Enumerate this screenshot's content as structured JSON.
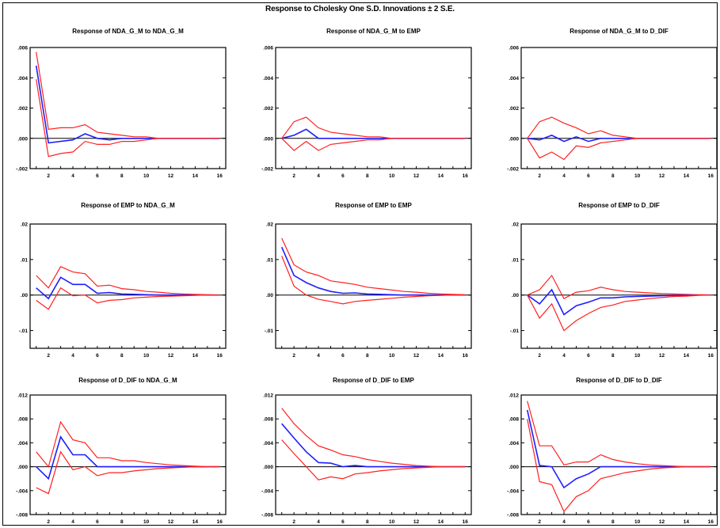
{
  "figure": {
    "title": "Response to Cholesky One S.D. Innovations ± 2 S.E."
  },
  "colors": {
    "response": "#1f1fff",
    "band": "#ff2020",
    "zero": "#000000",
    "axis": "#000000"
  },
  "chart_data": [
    {
      "type": "line",
      "title": "Response of NDA_G_M to NDA_G_M",
      "x": [
        1,
        2,
        3,
        4,
        5,
        6,
        7,
        8,
        9,
        10,
        11,
        12,
        13,
        14,
        15,
        16
      ],
      "xticks": [
        "2",
        "4",
        "6",
        "8",
        "10",
        "12",
        "14",
        "16"
      ],
      "ylim": [
        -0.002,
        0.006
      ],
      "yticks": [
        ".006",
        ".004",
        ".002",
        ".000",
        "-.002"
      ],
      "ytick_values": [
        0.006,
        0.004,
        0.002,
        0.0,
        -0.002
      ],
      "series": [
        {
          "role": "response",
          "values": [
            0.0048,
            -0.0003,
            -0.0002,
            -0.0001,
            0.0003,
            0.0,
            -0.0001,
            0.0,
            0.0,
            0.0,
            0.0,
            0.0,
            0.0,
            0.0,
            0.0,
            0.0
          ]
        },
        {
          "role": "upper",
          "values": [
            0.0057,
            0.0006,
            0.0007,
            0.0007,
            0.0009,
            0.0004,
            0.0003,
            0.0002,
            0.0001,
            0.0001,
            0.0,
            0.0,
            0.0,
            0.0,
            0.0,
            0.0
          ]
        },
        {
          "role": "lower",
          "values": [
            0.0039,
            -0.0012,
            -0.001,
            -0.0009,
            -0.0002,
            -0.0004,
            -0.0004,
            -0.0002,
            -0.0002,
            -0.0001,
            0.0,
            0.0,
            0.0,
            0.0,
            0.0,
            0.0
          ]
        }
      ]
    },
    {
      "type": "line",
      "title": "Response of NDA_G_M to EMP",
      "x": [
        1,
        2,
        3,
        4,
        5,
        6,
        7,
        8,
        9,
        10,
        11,
        12,
        13,
        14,
        15,
        16
      ],
      "xticks": [
        "2",
        "4",
        "6",
        "8",
        "10",
        "12",
        "14",
        "16"
      ],
      "ylim": [
        -0.002,
        0.006
      ],
      "yticks": [
        ".006",
        ".004",
        ".002",
        ".000",
        "-.002"
      ],
      "ytick_values": [
        0.006,
        0.004,
        0.002,
        0.0,
        -0.002
      ],
      "series": [
        {
          "role": "response",
          "values": [
            0.0,
            0.0002,
            0.0006,
            0.0,
            0.0,
            0.0,
            0.0,
            0.0,
            0.0,
            0.0,
            0.0,
            0.0,
            0.0,
            0.0,
            0.0,
            0.0
          ]
        },
        {
          "role": "upper",
          "values": [
            0.0,
            0.0011,
            0.0014,
            0.0007,
            0.0004,
            0.0003,
            0.0002,
            0.0001,
            0.0001,
            0.0,
            0.0,
            0.0,
            0.0,
            0.0,
            0.0,
            0.0
          ]
        },
        {
          "role": "lower",
          "values": [
            0.0,
            -0.0008,
            -0.0002,
            -0.0008,
            -0.0004,
            -0.0003,
            -0.0002,
            -0.0001,
            -0.0001,
            0.0,
            0.0,
            0.0,
            0.0,
            0.0,
            0.0,
            0.0
          ]
        }
      ]
    },
    {
      "type": "line",
      "title": "Response of NDA_G_M to D_DIF",
      "x": [
        1,
        2,
        3,
        4,
        5,
        6,
        7,
        8,
        9,
        10,
        11,
        12,
        13,
        14,
        15,
        16
      ],
      "xticks": [
        "2",
        "4",
        "6",
        "8",
        "10",
        "12",
        "14",
        "16"
      ],
      "ylim": [
        -0.002,
        0.006
      ],
      "yticks": [
        ".006",
        ".004",
        ".002",
        ".000",
        "-.002"
      ],
      "ytick_values": [
        0.006,
        0.004,
        0.002,
        0.0,
        -0.002
      ],
      "series": [
        {
          "role": "response",
          "values": [
            0.0,
            -0.0001,
            0.0002,
            -0.0002,
            0.0001,
            -0.0002,
            0.0,
            0.0,
            0.0,
            0.0,
            0.0,
            0.0,
            0.0,
            0.0,
            0.0,
            0.0
          ]
        },
        {
          "role": "upper",
          "values": [
            0.0,
            0.0011,
            0.0014,
            0.001,
            0.0007,
            0.0003,
            0.0005,
            0.0002,
            0.0001,
            0.0,
            0.0,
            0.0,
            0.0,
            0.0,
            0.0,
            0.0
          ]
        },
        {
          "role": "lower",
          "values": [
            0.0,
            -0.0013,
            -0.0009,
            -0.0014,
            -0.0005,
            -0.0006,
            -0.0003,
            -0.0002,
            -0.0001,
            0.0,
            0.0,
            0.0,
            0.0,
            0.0,
            0.0,
            0.0
          ]
        }
      ]
    },
    {
      "type": "line",
      "title": "Response of EMP to NDA_G_M",
      "x": [
        1,
        2,
        3,
        4,
        5,
        6,
        7,
        8,
        9,
        10,
        11,
        12,
        13,
        14,
        15,
        16
      ],
      "xticks": [
        "2",
        "4",
        "6",
        "8",
        "10",
        "12",
        "14",
        "16"
      ],
      "ylim": [
        -0.015,
        0.02
      ],
      "yticks": [
        ".02",
        ".01",
        ".00",
        "-.01"
      ],
      "ytick_values": [
        0.02,
        0.01,
        0.0,
        -0.01
      ],
      "series": [
        {
          "role": "response",
          "values": [
            0.002,
            -0.001,
            0.005,
            0.003,
            0.003,
            0.0005,
            0.0007,
            0.0003,
            0.0002,
            0.0001,
            0.0,
            0.0,
            0.0,
            0.0,
            0.0,
            0.0
          ]
        },
        {
          "role": "upper",
          "values": [
            0.0055,
            0.002,
            0.008,
            0.0065,
            0.006,
            0.0025,
            0.0028,
            0.0018,
            0.0015,
            0.001,
            0.0008,
            0.0005,
            0.0003,
            0.0002,
            0.0001,
            0.0
          ]
        },
        {
          "role": "lower",
          "values": [
            -0.0015,
            -0.004,
            0.002,
            -0.0002,
            0.0,
            -0.0022,
            -0.0015,
            -0.0013,
            -0.0008,
            -0.0006,
            -0.0004,
            -0.0003,
            -0.0002,
            -0.0001,
            0.0,
            0.0
          ]
        }
      ]
    },
    {
      "type": "line",
      "title": "Response of EMP to EMP",
      "x": [
        1,
        2,
        3,
        4,
        5,
        6,
        7,
        8,
        9,
        10,
        11,
        12,
        13,
        14,
        15,
        16
      ],
      "xticks": [
        "2",
        "4",
        "6",
        "8",
        "10",
        "12",
        "14",
        "16"
      ],
      "ylim": [
        -0.015,
        0.02
      ],
      "yticks": [
        ".02",
        ".01",
        ".00",
        "-.01"
      ],
      "ytick_values": [
        0.02,
        0.01,
        0.0,
        -0.01
      ],
      "series": [
        {
          "role": "response",
          "values": [
            0.0135,
            0.0055,
            0.0035,
            0.002,
            0.001,
            0.0005,
            0.0006,
            0.0003,
            0.0002,
            0.0001,
            0.0,
            0.0,
            0.0,
            0.0,
            0.0,
            0.0
          ]
        },
        {
          "role": "upper",
          "values": [
            0.016,
            0.0085,
            0.0065,
            0.0055,
            0.004,
            0.0035,
            0.003,
            0.0022,
            0.0018,
            0.0014,
            0.001,
            0.0008,
            0.0005,
            0.0003,
            0.0002,
            0.0001
          ]
        },
        {
          "role": "lower",
          "values": [
            0.011,
            0.0025,
            0.0,
            -0.0012,
            -0.0018,
            -0.0025,
            -0.0018,
            -0.0015,
            -0.0012,
            -0.0009,
            -0.0006,
            -0.0004,
            -0.0002,
            -0.0001,
            0.0,
            0.0
          ]
        }
      ]
    },
    {
      "type": "line",
      "title": "Response of EMP to D_DIF",
      "x": [
        1,
        2,
        3,
        4,
        5,
        6,
        7,
        8,
        9,
        10,
        11,
        12,
        13,
        14,
        15,
        16
      ],
      "xticks": [
        "2",
        "4",
        "6",
        "8",
        "10",
        "12",
        "14",
        "16"
      ],
      "ylim": [
        -0.015,
        0.02
      ],
      "yticks": [
        ".02",
        ".01",
        ".00",
        "-.01"
      ],
      "ytick_values": [
        0.02,
        0.01,
        0.0,
        -0.01
      ],
      "series": [
        {
          "role": "response",
          "values": [
            0.0,
            -0.0025,
            0.0015,
            -0.0055,
            -0.003,
            -0.002,
            -0.0008,
            -0.0008,
            -0.0005,
            -0.0004,
            -0.0003,
            -0.0002,
            -0.0001,
            -0.0001,
            0.0,
            0.0
          ]
        },
        {
          "role": "upper",
          "values": [
            0.0,
            0.0015,
            0.0055,
            -0.001,
            0.0008,
            0.0012,
            0.0022,
            0.0015,
            0.001,
            0.0008,
            0.0006,
            0.0004,
            0.0003,
            0.0002,
            0.0001,
            0.0
          ]
        },
        {
          "role": "lower",
          "values": [
            0.0,
            -0.0065,
            -0.0025,
            -0.01,
            -0.0072,
            -0.0052,
            -0.0035,
            -0.0028,
            -0.0018,
            -0.0014,
            -0.001,
            -0.0007,
            -0.0004,
            -0.0003,
            -0.0001,
            0.0
          ]
        }
      ]
    },
    {
      "type": "line",
      "title": "Response of D_DIF to NDA_G_M",
      "x": [
        1,
        2,
        3,
        4,
        5,
        6,
        7,
        8,
        9,
        10,
        11,
        12,
        13,
        14,
        15,
        16
      ],
      "xticks": [
        "2",
        "4",
        "6",
        "8",
        "10",
        "12",
        "14",
        "16"
      ],
      "ylim": [
        -0.008,
        0.012
      ],
      "yticks": [
        ".012",
        ".008",
        ".004",
        ".000",
        "-.004",
        "-.008"
      ],
      "ytick_values": [
        0.012,
        0.008,
        0.004,
        0.0,
        -0.004,
        -0.008
      ],
      "series": [
        {
          "role": "response",
          "values": [
            0.0,
            -0.002,
            0.005,
            0.002,
            0.002,
            0.0,
            0.0,
            0.0,
            0.0,
            0.0,
            0.0,
            0.0,
            0.0,
            0.0,
            0.0,
            0.0
          ]
        },
        {
          "role": "upper",
          "values": [
            0.0025,
            0.0,
            0.0075,
            0.0045,
            0.004,
            0.0015,
            0.0015,
            0.001,
            0.001,
            0.0007,
            0.0005,
            0.0003,
            0.0002,
            0.0001,
            0.0,
            0.0
          ]
        },
        {
          "role": "lower",
          "values": [
            -0.0035,
            -0.0045,
            0.0025,
            -0.0005,
            0.0,
            -0.0015,
            -0.001,
            -0.001,
            -0.0007,
            -0.0005,
            -0.0003,
            -0.0002,
            -0.0001,
            0.0,
            0.0,
            0.0
          ]
        }
      ]
    },
    {
      "type": "line",
      "title": "Response of D_DIF to EMP",
      "x": [
        1,
        2,
        3,
        4,
        5,
        6,
        7,
        8,
        9,
        10,
        11,
        12,
        13,
        14,
        15,
        16
      ],
      "xticks": [
        "2",
        "4",
        "6",
        "8",
        "10",
        "12",
        "14",
        "16"
      ],
      "ylim": [
        -0.008,
        0.012
      ],
      "yticks": [
        ".012",
        ".008",
        ".004",
        ".000",
        "-.004",
        "-.008"
      ],
      "ytick_values": [
        0.012,
        0.008,
        0.004,
        0.0,
        -0.004,
        -0.008
      ],
      "series": [
        {
          "role": "response",
          "values": [
            0.0072,
            0.0048,
            0.0025,
            0.0007,
            0.0006,
            0.0,
            0.0002,
            0.0,
            0.0,
            0.0,
            0.0,
            0.0,
            0.0,
            0.0,
            0.0,
            0.0
          ]
        },
        {
          "role": "upper",
          "values": [
            0.0098,
            0.0072,
            0.0052,
            0.0035,
            0.0028,
            0.002,
            0.0017,
            0.0012,
            0.0009,
            0.0006,
            0.0004,
            0.0002,
            0.0001,
            0.0,
            0.0,
            0.0
          ]
        },
        {
          "role": "lower",
          "values": [
            0.0045,
            0.0022,
            0.0,
            -0.0022,
            -0.0017,
            -0.002,
            -0.0012,
            -0.001,
            -0.0007,
            -0.0005,
            -0.0003,
            -0.0002,
            -0.0001,
            0.0,
            0.0,
            0.0
          ]
        }
      ]
    },
    {
      "type": "line",
      "title": "Response of D_DIF to D_DIF",
      "x": [
        1,
        2,
        3,
        4,
        5,
        6,
        7,
        8,
        9,
        10,
        11,
        12,
        13,
        14,
        15,
        16
      ],
      "xticks": [
        "2",
        "4",
        "6",
        "8",
        "10",
        "12",
        "14",
        "16"
      ],
      "ylim": [
        -0.008,
        0.012
      ],
      "yticks": [
        ".012",
        ".008",
        ".004",
        ".000",
        "-.004",
        "-.008"
      ],
      "ytick_values": [
        0.012,
        0.008,
        0.004,
        0.0,
        -0.004,
        -0.008
      ],
      "series": [
        {
          "role": "response",
          "values": [
            0.0095,
            0.0002,
            0.0,
            -0.0035,
            -0.002,
            -0.0012,
            0.0,
            0.0,
            0.0,
            0.0,
            0.0,
            0.0,
            0.0,
            0.0,
            0.0,
            0.0
          ]
        },
        {
          "role": "upper",
          "values": [
            0.011,
            0.0035,
            0.0035,
            0.0003,
            0.0008,
            0.0008,
            0.002,
            0.0012,
            0.0008,
            0.0005,
            0.0003,
            0.0002,
            0.0001,
            0.0,
            0.0,
            0.0
          ]
        },
        {
          "role": "lower",
          "values": [
            0.008,
            -0.0025,
            -0.003,
            -0.0075,
            -0.005,
            -0.004,
            -0.002,
            -0.0015,
            -0.001,
            -0.0007,
            -0.0004,
            -0.0002,
            -0.0001,
            0.0,
            0.0,
            0.0
          ]
        }
      ]
    }
  ]
}
